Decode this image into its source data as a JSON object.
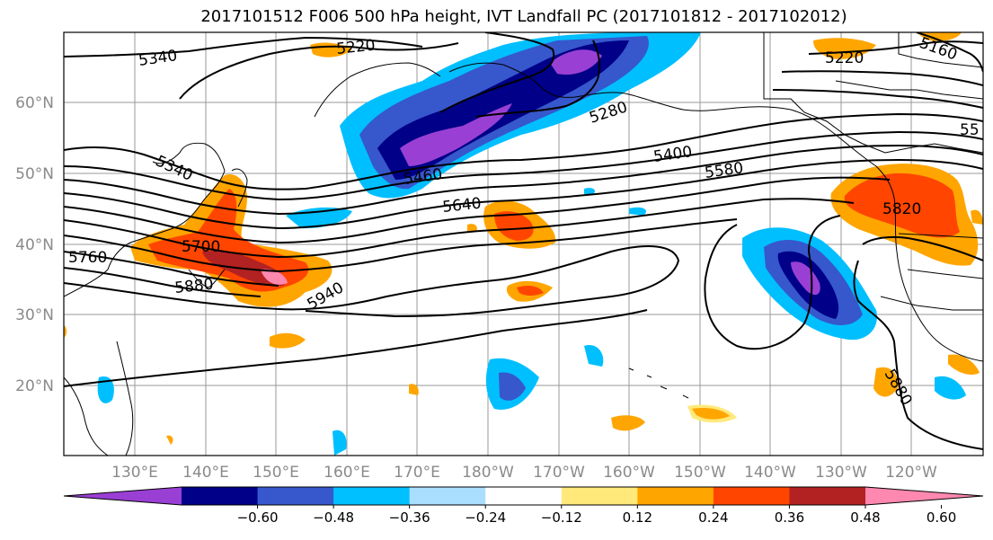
{
  "title": "2017101512 F006 500 hPa height, IVT Landfall PC (2017101812 - 2017102012)",
  "map": {
    "lon_labels": [
      "130°E",
      "140°E",
      "150°E",
      "160°E",
      "170°E",
      "180°W",
      "170°W",
      "160°W",
      "150°W",
      "140°W",
      "130°W",
      "120°W"
    ],
    "lat_labels": [
      "60°N",
      "50°N",
      "40°N",
      "30°N",
      "20°N"
    ],
    "contour_labels": [
      "5340",
      "5220",
      "5160",
      "5220",
      "5280",
      "5340",
      "5460",
      "5400",
      "5580",
      "55",
      "5640",
      "5820",
      "5700",
      "5760",
      "5880",
      "5940",
      "5880"
    ],
    "land_color": "#ffffff",
    "coastline_color": "#000000",
    "grid": true
  },
  "colorbar": {
    "colors": [
      "#9a3fd4",
      "#000088",
      "#3757cc",
      "#00bfff",
      "#aadeff",
      "#ffffff",
      "#ffe97a",
      "#ffa500",
      "#ff4500",
      "#b22222",
      "#ff88b0"
    ],
    "tick_labels": [
      "−0.60",
      "−0.48",
      "−0.36",
      "−0.24",
      "−0.12",
      "0.12",
      "0.24",
      "0.36",
      "0.48",
      "0.60"
    ],
    "extend": "both"
  }
}
